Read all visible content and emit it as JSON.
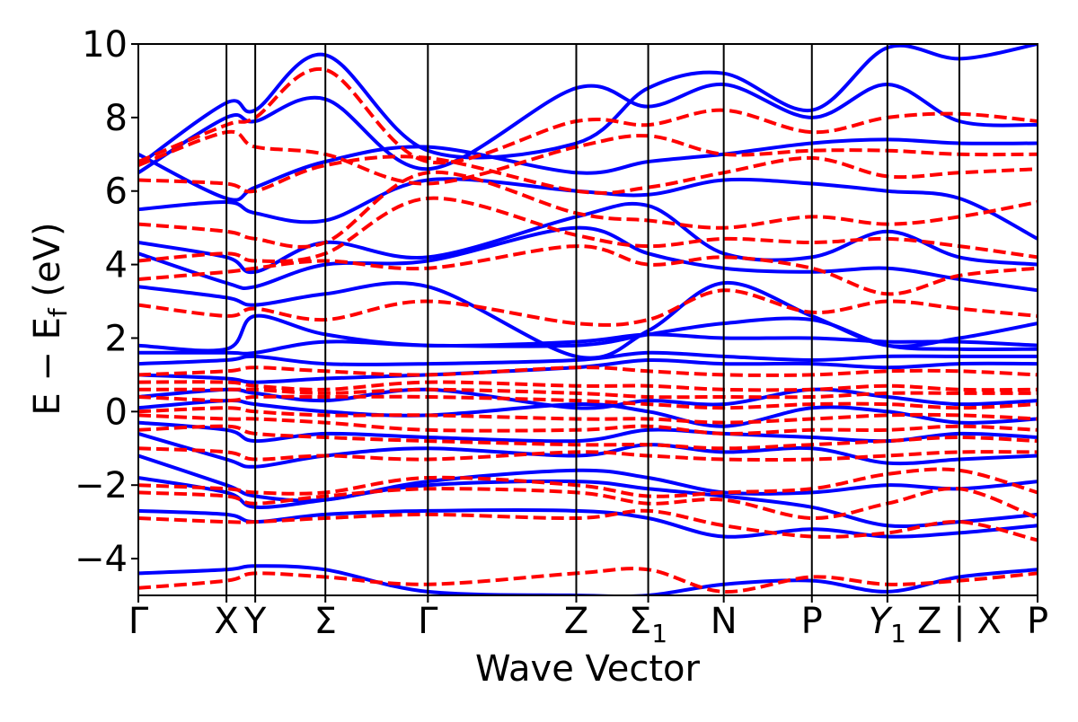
{
  "chart_data": {
    "type": "line",
    "title": "",
    "xlabel": "Wave Vector",
    "ylabel": "E − E_f (eV)",
    "ylabel_main": "E − E",
    "ylabel_sub": "f",
    "ylabel_units": " (eV)",
    "ylim": [
      -5,
      10
    ],
    "yticks": [
      -4,
      -2,
      0,
      2,
      4,
      6,
      8,
      10
    ],
    "ytick_labels": [
      "−4",
      "−2",
      "0",
      "2",
      "4",
      "6",
      "8",
      "10"
    ],
    "grid": false,
    "kpath": [
      {
        "label": "Γ",
        "sub": "",
        "italic": false,
        "pos": 0.0
      },
      {
        "label": "X",
        "sub": "",
        "italic": false,
        "pos": 0.098
      },
      {
        "label": "Y",
        "sub": "",
        "italic": false,
        "pos": 0.13
      },
      {
        "label": "Σ",
        "sub": "",
        "italic": false,
        "pos": 0.208
      },
      {
        "label": "Γ",
        "sub": "",
        "italic": false,
        "pos": 0.322
      },
      {
        "label": "Z",
        "sub": "",
        "italic": false,
        "pos": 0.487
      },
      {
        "label": "Σ",
        "sub": "1",
        "italic": false,
        "pos": 0.567
      },
      {
        "label": "N",
        "sub": "",
        "italic": false,
        "pos": 0.651
      },
      {
        "label": "P",
        "sub": "",
        "italic": false,
        "pos": 0.749
      },
      {
        "label": "Y",
        "sub": "1",
        "italic": true,
        "pos": 0.833
      },
      {
        "label": "Z | X",
        "sub": "",
        "italic": false,
        "pos": 0.913
      },
      {
        "label": "P",
        "sub": "",
        "italic": false,
        "pos": 1.0
      }
    ],
    "series": [
      {
        "style": "solid",
        "color": "#0000ff",
        "bands": [
          [
            -4.4,
            -4.3,
            -4.2,
            -4.3,
            -4.9,
            -5.0,
            -5.0,
            -4.7,
            -4.6,
            -4.9,
            -4.5,
            -4.3
          ],
          [
            -2.7,
            -2.8,
            -3.0,
            -2.8,
            -2.7,
            -2.7,
            -2.9,
            -3.4,
            -3.2,
            -3.4,
            -3.3,
            -3.1
          ],
          [
            -1.8,
            -2.2,
            -2.6,
            -2.4,
            -2.0,
            -1.9,
            -2.1,
            -2.3,
            -2.6,
            -3.1,
            -3.0,
            -2.8
          ],
          [
            -1.2,
            -2.0,
            -2.3,
            -2.4,
            -1.9,
            -1.6,
            -1.8,
            -2.2,
            -2.2,
            -2.0,
            -2.1,
            -1.9
          ],
          [
            -0.6,
            -1.3,
            -1.5,
            -1.2,
            -1.0,
            -1.2,
            -0.9,
            -1.1,
            -1.0,
            -1.4,
            -1.3,
            -1.2
          ],
          [
            -0.3,
            -0.5,
            -0.8,
            -0.6,
            -0.7,
            -0.8,
            -0.5,
            -0.6,
            -0.7,
            -0.8,
            -0.6,
            -0.7
          ],
          [
            0.1,
            0.3,
            0.2,
            0.0,
            -0.1,
            0.2,
            0.0,
            -0.4,
            0.1,
            0.0,
            -0.3,
            -0.2
          ],
          [
            0.4,
            0.6,
            0.5,
            0.3,
            0.6,
            0.1,
            0.3,
            0.2,
            0.6,
            0.4,
            0.2,
            0.3
          ],
          [
            1.0,
            0.9,
            0.8,
            0.9,
            1.0,
            1.2,
            1.4,
            1.3,
            1.3,
            1.2,
            1.3,
            1.3
          ],
          [
            1.3,
            1.4,
            1.5,
            1.3,
            1.3,
            1.4,
            1.6,
            1.5,
            1.4,
            1.5,
            1.5,
            1.5
          ],
          [
            1.6,
            1.6,
            1.6,
            1.9,
            1.8,
            1.8,
            2.1,
            2.4,
            2.5,
            1.8,
            1.7,
            1.7
          ],
          [
            1.8,
            1.7,
            2.6,
            2.1,
            1.8,
            1.9,
            2.1,
            2.0,
            2.0,
            1.9,
            1.9,
            1.8
          ],
          [
            3.4,
            3.1,
            2.9,
            3.2,
            3.4,
            1.5,
            2.2,
            3.5,
            2.6,
            1.8,
            2.0,
            2.4
          ],
          [
            4.3,
            3.5,
            3.4,
            4.0,
            4.1,
            5.0,
            4.3,
            3.9,
            3.8,
            3.9,
            3.6,
            3.3
          ],
          [
            4.6,
            4.2,
            3.8,
            4.6,
            4.2,
            5.3,
            5.6,
            4.3,
            4.2,
            4.9,
            4.2,
            4.0
          ],
          [
            5.5,
            5.7,
            5.4,
            5.2,
            6.3,
            6.0,
            5.9,
            6.3,
            6.2,
            6.0,
            5.8,
            4.7
          ],
          [
            7.0,
            5.8,
            6.1,
            6.8,
            7.2,
            6.5,
            6.8,
            7.0,
            7.3,
            7.4,
            7.3,
            7.3
          ],
          [
            6.5,
            8.0,
            7.9,
            8.5,
            6.6,
            8.8,
            8.3,
            8.9,
            8.0,
            8.9,
            7.9,
            7.8
          ],
          [
            6.7,
            8.4,
            8.2,
            9.7,
            7.1,
            7.3,
            8.8,
            9.2,
            8.2,
            9.9,
            9.6,
            10.0
          ]
        ]
      },
      {
        "style": "dashed",
        "color": "#ff0000",
        "bands": [
          [
            -4.8,
            -4.6,
            -4.4,
            -4.5,
            -4.7,
            -4.4,
            -4.3,
            -4.9,
            -4.5,
            -4.7,
            -4.6,
            -4.4
          ],
          [
            -2.9,
            -3.0,
            -3.0,
            -2.9,
            -2.8,
            -2.9,
            -2.7,
            -3.1,
            -3.4,
            -3.3,
            -3.0,
            -3.5
          ],
          [
            -2.2,
            -2.3,
            -2.5,
            -2.3,
            -2.1,
            -2.2,
            -2.5,
            -2.4,
            -2.9,
            -2.5,
            -2.1,
            -2.9
          ],
          [
            -2.0,
            -2.1,
            -2.2,
            -2.2,
            -1.8,
            -2.0,
            -2.3,
            -2.2,
            -2.1,
            -1.7,
            -1.6,
            -2.2
          ],
          [
            -1.0,
            -1.1,
            -1.3,
            -1.2,
            -1.3,
            -1.1,
            -1.2,
            -1.3,
            -1.3,
            -1.2,
            -1.1,
            -1.1
          ],
          [
            -0.5,
            -0.4,
            -0.6,
            -0.7,
            -0.8,
            -0.9,
            -0.9,
            -1.0,
            -0.9,
            -0.8,
            -0.7,
            -0.8
          ],
          [
            -0.1,
            -0.2,
            -0.2,
            -0.3,
            -0.5,
            -0.5,
            -0.4,
            -0.6,
            -0.5,
            -0.5,
            -0.4,
            -0.5
          ],
          [
            0.0,
            0.1,
            0.0,
            -0.1,
            -0.1,
            -0.2,
            -0.2,
            -0.3,
            -0.2,
            -0.1,
            -0.1,
            -0.2
          ],
          [
            0.4,
            0.3,
            0.4,
            0.4,
            0.4,
            0.3,
            0.2,
            0.1,
            0.2,
            0.2,
            0.1,
            0.2
          ],
          [
            0.6,
            0.6,
            0.6,
            0.5,
            0.6,
            0.5,
            0.4,
            0.4,
            0.4,
            0.5,
            0.5,
            0.5
          ],
          [
            0.8,
            0.8,
            0.7,
            0.6,
            0.8,
            0.7,
            0.7,
            0.6,
            0.6,
            0.7,
            0.6,
            0.6
          ],
          [
            1.0,
            1.1,
            1.2,
            1.1,
            1.0,
            1.2,
            1.1,
            1.0,
            1.0,
            1.1,
            1.1,
            1.0
          ],
          [
            2.9,
            2.6,
            2.8,
            2.5,
            3.0,
            2.4,
            2.5,
            3.3,
            2.7,
            3.0,
            2.8,
            2.6
          ],
          [
            3.6,
            3.8,
            3.9,
            4.1,
            3.9,
            4.5,
            4.0,
            4.2,
            3.9,
            3.2,
            3.7,
            3.9
          ],
          [
            4.1,
            4.3,
            4.1,
            4.3,
            5.8,
            4.8,
            4.5,
            4.7,
            4.6,
            4.7,
            4.5,
            4.2
          ],
          [
            5.1,
            4.9,
            4.7,
            4.6,
            6.5,
            5.4,
            5.2,
            5.0,
            5.3,
            5.1,
            5.3,
            5.7
          ],
          [
            6.3,
            6.2,
            6.0,
            6.7,
            6.9,
            6.0,
            6.1,
            6.5,
            6.9,
            6.4,
            6.5,
            6.6
          ],
          [
            6.7,
            7.6,
            7.2,
            7.0,
            6.2,
            7.2,
            7.5,
            7.0,
            7.1,
            7.1,
            7.0,
            7.0
          ],
          [
            6.8,
            7.8,
            8.0,
            9.3,
            6.8,
            7.9,
            7.8,
            8.2,
            7.6,
            8.0,
            8.1,
            7.9
          ]
        ]
      }
    ]
  }
}
